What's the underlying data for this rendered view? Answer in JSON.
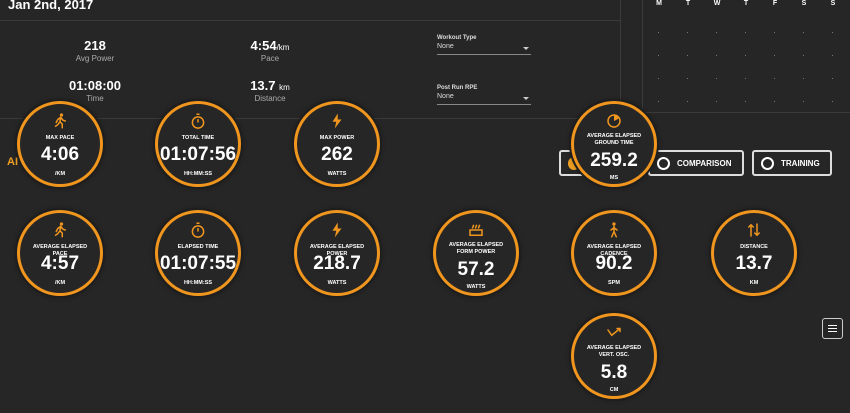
{
  "header": {
    "date": "Jan 2nd, 2017",
    "stats": [
      {
        "value": "218",
        "unit": "",
        "label": "Avg Power"
      },
      {
        "value": "4:54",
        "unit": "/km",
        "label": "Pace"
      },
      {
        "value": "01:08:00",
        "unit": "",
        "label": "Time"
      },
      {
        "value": "13.7",
        "unit": "km",
        "label": "Distance"
      }
    ],
    "workout_type": {
      "label": "Workout Type",
      "value": "None"
    },
    "post_run_rpe": {
      "label": "Post Run RPE",
      "value": "None"
    }
  },
  "calendar": {
    "days": [
      "M",
      "T",
      "W",
      "T",
      "F",
      "S",
      "S"
    ]
  },
  "partial_label": "AI",
  "toggles": {
    "comparison": "COMPARISON",
    "training": "TRAINING"
  },
  "metrics": [
    {
      "id": "max-pace",
      "label": "MAX PACE",
      "value": "4:06",
      "unit": "/KM",
      "icon": "runner-icon"
    },
    {
      "id": "total-time",
      "label": "TOTAL TIME",
      "value": "01:07:56",
      "unit": "HH:MM:SS",
      "icon": "stopwatch-icon"
    },
    {
      "id": "max-power",
      "label": "MAX POWER",
      "value": "262",
      "unit": "WATTS",
      "icon": "lightning-icon"
    },
    {
      "id": "avg-ground-time",
      "label": "AVERAGE ELAPSED GROUND TIME",
      "value": "259.2",
      "unit": "MS",
      "icon": "gauge-icon"
    },
    {
      "id": "avg-pace",
      "label": "AVERAGE ELAPSED PACE",
      "value": "4:57",
      "unit": "/KM",
      "icon": "runner-icon"
    },
    {
      "id": "elapsed-time",
      "label": "ELAPSED TIME",
      "value": "01:07:55",
      "unit": "HH:MM:SS",
      "icon": "stopwatch-icon"
    },
    {
      "id": "avg-power",
      "label": "AVERAGE ELAPSED POWER",
      "value": "218.7",
      "unit": "WATTS",
      "icon": "lightning-icon"
    },
    {
      "id": "avg-form-power",
      "label": "AVERAGE ELAPSED FORM POWER",
      "value": "57.2",
      "unit": "WATTS",
      "icon": "form-power-icon"
    },
    {
      "id": "avg-cadence",
      "label": "AVERAGE ELAPSED CADENCE",
      "value": "90.2",
      "unit": "SPM",
      "icon": "walker-icon"
    },
    {
      "id": "distance",
      "label": "DISTANCE",
      "value": "13.7",
      "unit": "KM",
      "icon": "swap-arrows-icon"
    },
    {
      "id": "avg-vert-osc",
      "label": "AVERAGE ELAPSED VERT. OSC.",
      "value": "5.8",
      "unit": "CM",
      "icon": "vert-osc-icon"
    }
  ],
  "colors": {
    "accent": "#f0961e",
    "background": "#262626",
    "text": "#ffffff"
  }
}
